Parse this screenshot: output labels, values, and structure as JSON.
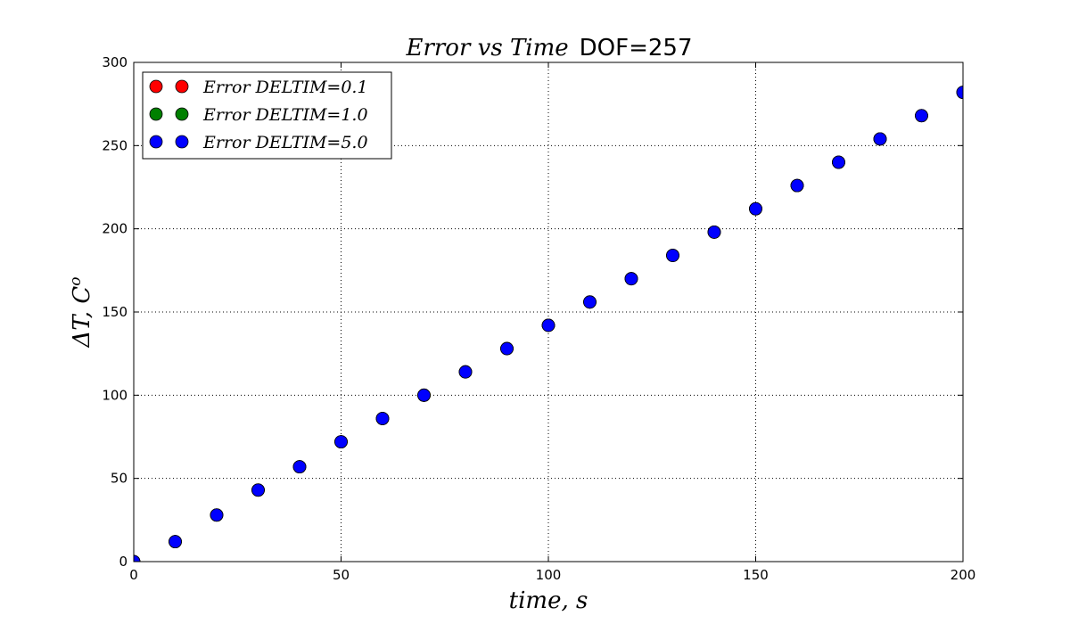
{
  "chart_data": {
    "type": "scatter",
    "title_math": "Error vs Time",
    "title_plain": "DOF=257",
    "xlabel": "time, s",
    "ylabel": "ΔT, C",
    "ylabel_superscript": "o",
    "xlim": [
      0,
      200
    ],
    "ylim": [
      0,
      300
    ],
    "xticks": [
      0,
      50,
      100,
      150,
      200
    ],
    "yticks": [
      0,
      50,
      100,
      150,
      200,
      250,
      300
    ],
    "grid": true,
    "legend_position": "top-left",
    "series": [
      {
        "name": "Error DELTIM=0.1",
        "color": "#ff0000",
        "x": [
          0,
          10,
          20,
          30,
          40,
          50,
          60,
          70,
          80,
          90,
          100,
          110,
          120,
          130,
          140,
          150,
          160,
          170,
          180,
          190,
          200
        ],
        "y": [
          0,
          12,
          28,
          43,
          57,
          72,
          86,
          100,
          114,
          128,
          142,
          156,
          170,
          184,
          198,
          212,
          226,
          240,
          254,
          268,
          282
        ]
      },
      {
        "name": "Error DELTIM=1.0",
        "color": "#008000",
        "x": [
          0,
          10,
          20,
          30,
          40,
          50,
          60,
          70,
          80,
          90,
          100,
          110,
          120,
          130,
          140,
          150,
          160,
          170,
          180,
          190,
          200
        ],
        "y": [
          0,
          12,
          28,
          43,
          57,
          72,
          86,
          100,
          114,
          128,
          142,
          156,
          170,
          184,
          198,
          212,
          226,
          240,
          254,
          268,
          282
        ]
      },
      {
        "name": "Error DELTIM=5.0",
        "color": "#0000ff",
        "x": [
          0,
          10,
          20,
          30,
          40,
          50,
          60,
          70,
          80,
          90,
          100,
          110,
          120,
          130,
          140,
          150,
          160,
          170,
          180,
          190,
          200
        ],
        "y": [
          0,
          12,
          28,
          43,
          57,
          72,
          86,
          100,
          114,
          128,
          142,
          156,
          170,
          184,
          198,
          212,
          226,
          240,
          254,
          268,
          282
        ]
      }
    ]
  }
}
